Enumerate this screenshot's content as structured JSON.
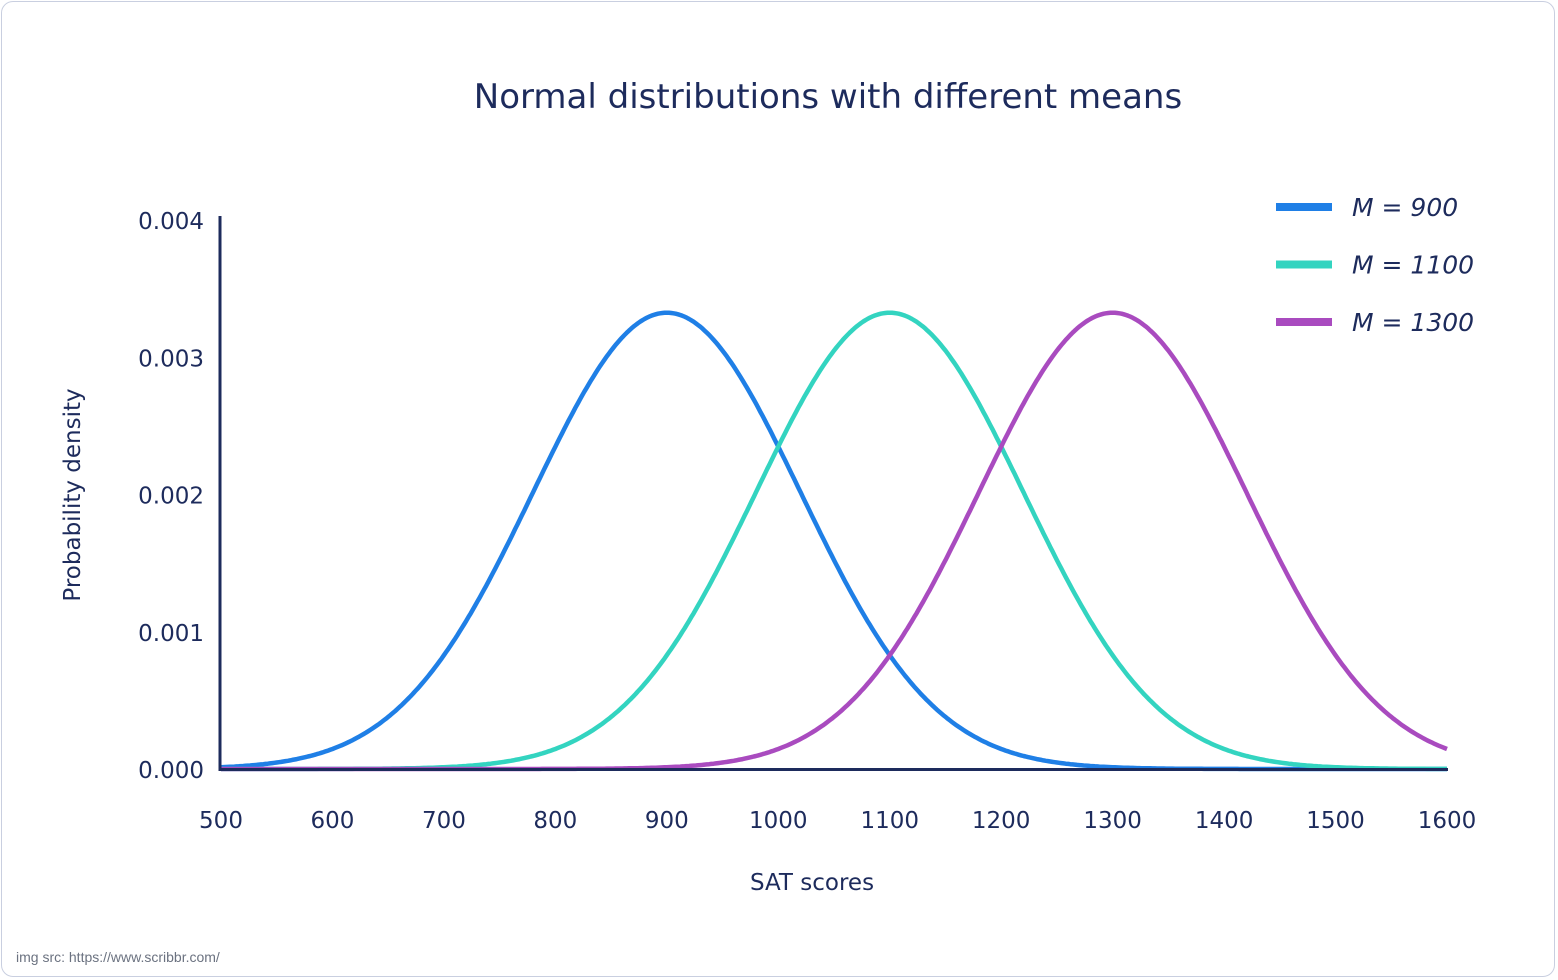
{
  "chart_data": {
    "type": "line",
    "title": "Normal distributions with different means",
    "xlabel": "SAT scores",
    "ylabel": "Probability density",
    "xlim": [
      500,
      1600
    ],
    "ylim": [
      0,
      0.004
    ],
    "xticks": [
      "500",
      "600",
      "700",
      "800",
      "900",
      "1000",
      "1100",
      "1200",
      "1300",
      "1400",
      "1500",
      "1600"
    ],
    "xtick_values": [
      500,
      600,
      700,
      800,
      900,
      1000,
      1100,
      1200,
      1300,
      1400,
      1500,
      1600
    ],
    "yticks": [
      "0.000",
      "0.001",
      "0.002",
      "0.003",
      "0.004"
    ],
    "ytick_values": [
      0,
      0.001,
      0.002,
      0.003,
      0.004
    ],
    "grid": false,
    "legend_position": "top-right",
    "series": [
      {
        "name": "M = 900",
        "mean": 900,
        "sd": 120,
        "color": "#1f7fe6"
      },
      {
        "name": "M = 1100",
        "mean": 1100,
        "sd": 120,
        "color": "#33d4c0"
      },
      {
        "name": "M = 1300",
        "mean": 1300,
        "sd": 120,
        "color": "#a94bbf"
      }
    ]
  },
  "footer": {
    "source": "img src: https://www.scribbr.com/"
  }
}
